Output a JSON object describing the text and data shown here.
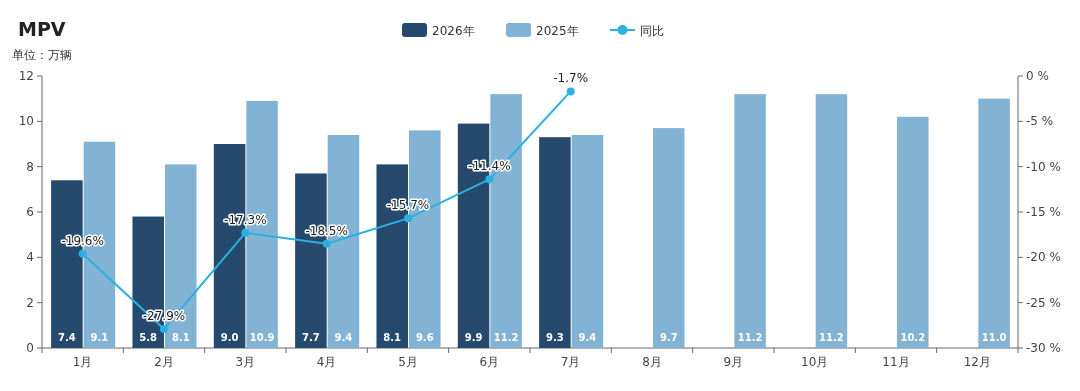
{
  "chart_data": {
    "type": "bar",
    "title": "MPV",
    "annotations": [
      "单位：万辆"
    ],
    "categories": [
      "1月",
      "2月",
      "3月",
      "4月",
      "5月",
      "6月",
      "7月",
      "8月",
      "9月",
      "10月",
      "11月",
      "12月"
    ],
    "series": [
      {
        "name": "2026年",
        "color": "#254a6e",
        "values": [
          7.4,
          5.8,
          9.0,
          7.7,
          8.1,
          9.9,
          9.3,
          null,
          null,
          null,
          null,
          null
        ],
        "value_labels": [
          "7.4",
          "5.8",
          "9.0",
          "7.7",
          "8.1",
          "9.9",
          "9.3",
          null,
          null,
          null,
          null,
          null
        ]
      },
      {
        "name": "2025年",
        "color": "#82b3d4",
        "values": [
          9.1,
          8.1,
          10.9,
          9.4,
          9.6,
          11.2,
          9.4,
          9.7,
          11.2,
          11.2,
          10.2,
          11.0
        ],
        "value_labels": [
          "9.1",
          "8.1",
          "10.9",
          "9.4",
          "9.6",
          "11.2",
          "9.4",
          "9.7",
          "11.2",
          "11.2",
          "10.2",
          "11.0"
        ]
      },
      {
        "name": "同比",
        "type": "line",
        "axis": "y2",
        "color": "#2bb0e0",
        "marker": "circle",
        "values": [
          -19.6,
          -27.9,
          -17.3,
          -18.5,
          -15.7,
          -11.4,
          -1.7,
          null,
          null,
          null,
          null,
          null
        ],
        "value_labels": [
          "-19.6%",
          "-27.9%",
          "-17.3%",
          "-18.5%",
          "-15.7%",
          "-11.4%",
          "-1.7%",
          null,
          null,
          null,
          null,
          null
        ]
      }
    ],
    "ylim": [
      0,
      12
    ],
    "yticks": [
      0,
      2,
      4,
      6,
      8,
      10,
      12
    ],
    "y2lim": [
      -30,
      0
    ],
    "y2ticks": [
      {
        "value": -30,
        "label": "-30 %"
      },
      {
        "value": -25,
        "label": "-25 %"
      },
      {
        "value": -20,
        "label": "-20 %"
      },
      {
        "value": -15,
        "label": "-15 %"
      },
      {
        "value": -10,
        "label": "-10 %"
      },
      {
        "value": -5,
        "label": "-5 %"
      },
      {
        "value": 0,
        "label": "0 %"
      }
    ],
    "grid": false,
    "legend": "top"
  }
}
